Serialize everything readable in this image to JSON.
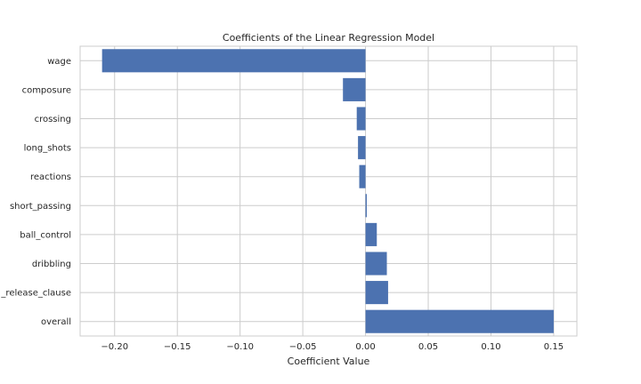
{
  "chart_data": {
    "type": "bar",
    "orientation": "horizontal",
    "title": "Coefficients of the Linear Regression Model",
    "xlabel": "Coefficient Value",
    "ylabel": "",
    "xlim": [
      -0.2275,
      0.1685
    ],
    "xticks": [
      -0.2,
      -0.15,
      -0.1,
      -0.05,
      0.0,
      0.05,
      0.1,
      0.15
    ],
    "xtick_labels": [
      "−0.20",
      "−0.15",
      "−0.10",
      "−0.05",
      "0.00",
      "0.05",
      "0.10",
      "0.15"
    ],
    "categories": [
      "overall",
      "_release_clause",
      "dribbling",
      "ball_control",
      "short_passing",
      "reactions",
      "long_shots",
      "crossing",
      "composure",
      "wage"
    ],
    "values": [
      0.15,
      0.018,
      0.017,
      0.009,
      0.001,
      -0.005,
      -0.006,
      -0.007,
      -0.018,
      -0.21
    ],
    "grid": true,
    "bar_color": "#4c72b0",
    "grid_color": "#cccccc"
  }
}
